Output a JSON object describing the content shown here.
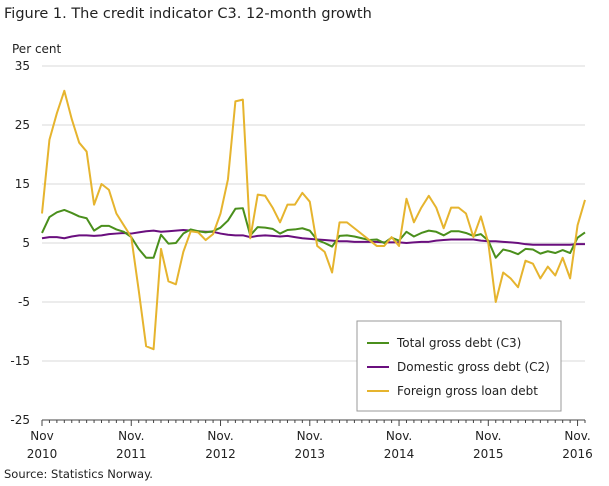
{
  "header": {
    "title": "Figure 1. The credit indicator C3. 12-month growth"
  },
  "footer": {
    "source": "Source: Statistics Norway."
  },
  "colors": {
    "c3": "#4a8f1c",
    "c2": "#6a0f7e",
    "foreign": "#e6b42e",
    "axis": "#444444",
    "grid": "#d9d9d9"
  },
  "chart_data": {
    "type": "line",
    "ylabel": "Per cent",
    "ylim": [
      -25,
      35
    ],
    "yticks": [
      -25,
      -15,
      -5,
      5,
      15,
      25,
      35
    ],
    "grid": true,
    "legend_position": "bottom-right",
    "x_labels": [
      {
        "index": 0,
        "line1": "Nov",
        "line2": "2010"
      },
      {
        "index": 12,
        "line1": "Nov.",
        "line2": "2011"
      },
      {
        "index": 24,
        "line1": "Nov.",
        "line2": "2012"
      },
      {
        "index": 36,
        "line1": "Nov.",
        "line2": "2013"
      },
      {
        "index": 48,
        "line1": "Nov.",
        "line2": "2014"
      },
      {
        "index": 60,
        "line1": "Nov.",
        "line2": "2015"
      },
      {
        "index": 72,
        "line1": "Nov.",
        "line2": "2016"
      }
    ],
    "series": [
      {
        "name": "Total gross debt (C3)",
        "color_key": "c3",
        "values": [
          6.7,
          9.4,
          10.2,
          10.6,
          10.1,
          9.5,
          9.2,
          7.1,
          7.9,
          7.9,
          7.3,
          6.9,
          6.0,
          4.0,
          2.5,
          2.5,
          6.4,
          4.9,
          5.0,
          6.6,
          7.3,
          7.0,
          6.8,
          7.0,
          7.6,
          8.8,
          10.8,
          10.9,
          6.3,
          7.7,
          7.6,
          7.4,
          6.6,
          7.2,
          7.3,
          7.5,
          7.1,
          5.5,
          5.0,
          4.4,
          6.2,
          6.3,
          6.1,
          5.8,
          5.5,
          5.6,
          5.0,
          5.9,
          5.4,
          6.9,
          6.1,
          6.7,
          7.1,
          6.9,
          6.3,
          7.0,
          7.0,
          6.7,
          6.2,
          6.5,
          5.4,
          2.5,
          3.9,
          3.6,
          3.1,
          4.0,
          3.9,
          3.2,
          3.6,
          3.3,
          3.8,
          3.3,
          5.9,
          6.8
        ]
      },
      {
        "name": "Domestic gross debt (C2)",
        "color_key": "c2",
        "values": [
          5.8,
          6.0,
          6.0,
          5.8,
          6.1,
          6.3,
          6.3,
          6.2,
          6.3,
          6.5,
          6.6,
          6.7,
          6.6,
          6.8,
          7.0,
          7.1,
          6.9,
          7.0,
          7.1,
          7.2,
          7.1,
          7.0,
          6.9,
          6.9,
          6.6,
          6.4,
          6.3,
          6.3,
          6.0,
          6.2,
          6.3,
          6.2,
          6.1,
          6.2,
          6.0,
          5.8,
          5.7,
          5.6,
          5.5,
          5.4,
          5.3,
          5.3,
          5.2,
          5.2,
          5.2,
          5.2,
          5.1,
          5.1,
          5.1,
          5.0,
          5.1,
          5.2,
          5.2,
          5.4,
          5.5,
          5.6,
          5.6,
          5.6,
          5.6,
          5.4,
          5.3,
          5.3,
          5.2,
          5.1,
          5.0,
          4.8,
          4.7,
          4.7,
          4.7,
          4.7,
          4.7,
          4.7,
          4.8,
          4.8
        ]
      },
      {
        "name": "Foreign gross loan debt",
        "color_key": "foreign",
        "values": [
          10.0,
          22.5,
          27.0,
          30.8,
          26.0,
          22.0,
          20.5,
          11.5,
          15.0,
          14.0,
          10.0,
          8.0,
          6.0,
          -3.0,
          -12.5,
          -13.0,
          4.0,
          -1.5,
          -2.0,
          3.5,
          7.0,
          6.8,
          5.5,
          6.5,
          10.0,
          15.8,
          29.0,
          29.3,
          5.8,
          13.2,
          13.0,
          11.0,
          8.5,
          11.5,
          11.5,
          13.5,
          12.0,
          4.5,
          3.5,
          0.0,
          8.5,
          8.5,
          7.5,
          6.5,
          5.5,
          4.5,
          4.5,
          6.0,
          4.5,
          12.5,
          8.5,
          11.0,
          13.0,
          11.0,
          7.5,
          11.0,
          11.0,
          10.0,
          6.0,
          9.5,
          5.0,
          -5.0,
          0.0,
          -1.0,
          -2.5,
          2.0,
          1.5,
          -1.0,
          1.0,
          -0.5,
          2.5,
          -1.0,
          8.0,
          12.3
        ]
      }
    ]
  }
}
